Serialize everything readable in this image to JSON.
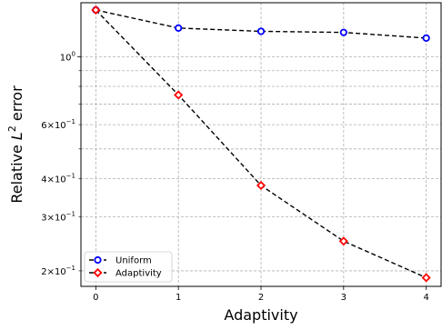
{
  "chart_data": {
    "type": "line",
    "xlabel": "Adaptivity",
    "ylabel": "Relative L² error",
    "yscale": "log",
    "xlim": [
      -0.18,
      4.18
    ],
    "ylim": [
      0.178,
      1.5
    ],
    "x_ticks": [
      0,
      1,
      2,
      3,
      4
    ],
    "y_ticks_major": [
      {
        "value": 1.0,
        "base": "10",
        "exp": "0"
      }
    ],
    "y_ticks_minor_labeled": [
      {
        "value": 0.6,
        "coef": "6×10",
        "exp": "−1"
      },
      {
        "value": 0.4,
        "coef": "4×10",
        "exp": "−1"
      },
      {
        "value": 0.3,
        "coef": "3×10",
        "exp": "−1"
      },
      {
        "value": 0.2,
        "coef": "2×10",
        "exp": "−1"
      }
    ],
    "y_grid_minor": [
      0.2,
      0.3,
      0.4,
      0.5,
      0.6,
      0.7,
      0.8,
      0.9
    ],
    "grid": true,
    "legend_position": "lower-left",
    "series": [
      {
        "name": "Uniform",
        "color": "#0000ff",
        "marker": "circle",
        "x": [
          0,
          1,
          2,
          3,
          4
        ],
        "values": [
          1.42,
          1.24,
          1.21,
          1.2,
          1.15
        ]
      },
      {
        "name": "Adaptivity",
        "color": "#ff0000",
        "marker": "diamond",
        "x": [
          0,
          1,
          2,
          3,
          4
        ],
        "values": [
          1.42,
          0.75,
          0.38,
          0.25,
          0.19
        ]
      }
    ]
  }
}
